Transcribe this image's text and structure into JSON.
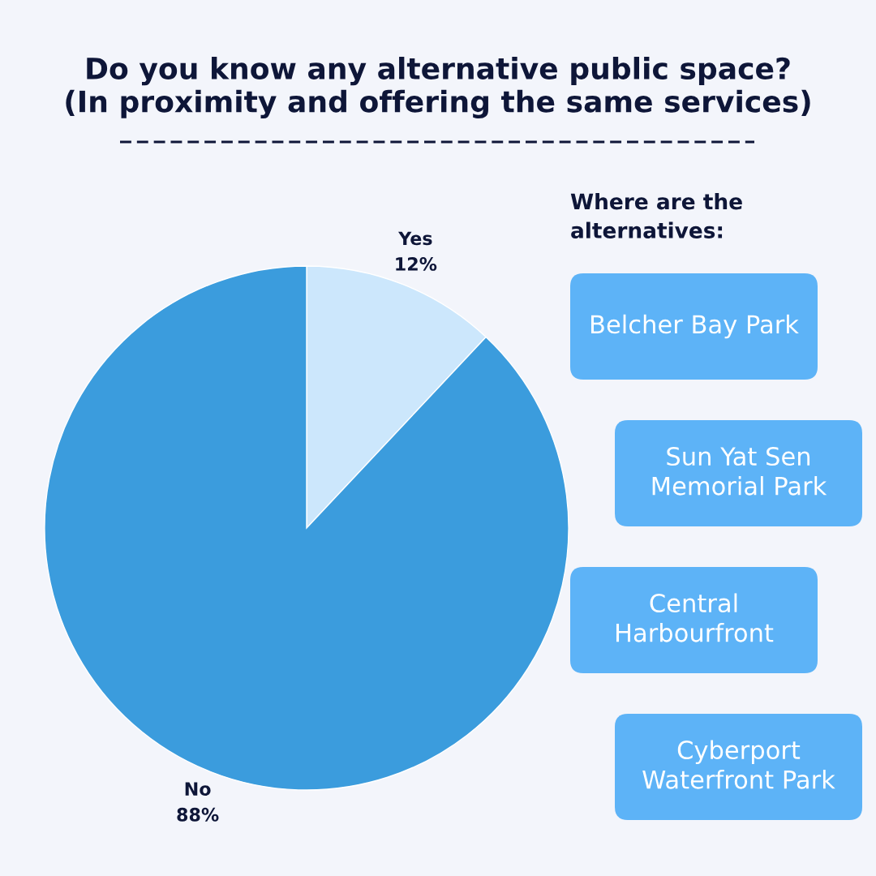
{
  "chart_data": [
    {
      "type": "pie",
      "title": "Do you know any alternative public space?\n(In proximity and offering the same services)",
      "categories": [
        "Yes",
        "No"
      ],
      "values": [
        12,
        88
      ],
      "value_labels": [
        "12%",
        "88%"
      ],
      "colors": [
        "#cce7fc",
        "#3b9cdd"
      ]
    },
    {
      "type": "other",
      "title": "Where are the\nalternatives:",
      "annotations": [
        "Belcher Bay Park",
        "Sun Yat Sen\nMemorial Park",
        "Central\nHarbourfront",
        "Cyberport\nWaterfront Park"
      ],
      "colors": [
        "#5db3f7",
        "#5db3f7",
        "#5db3f7",
        "#5db3f7"
      ]
    }
  ]
}
